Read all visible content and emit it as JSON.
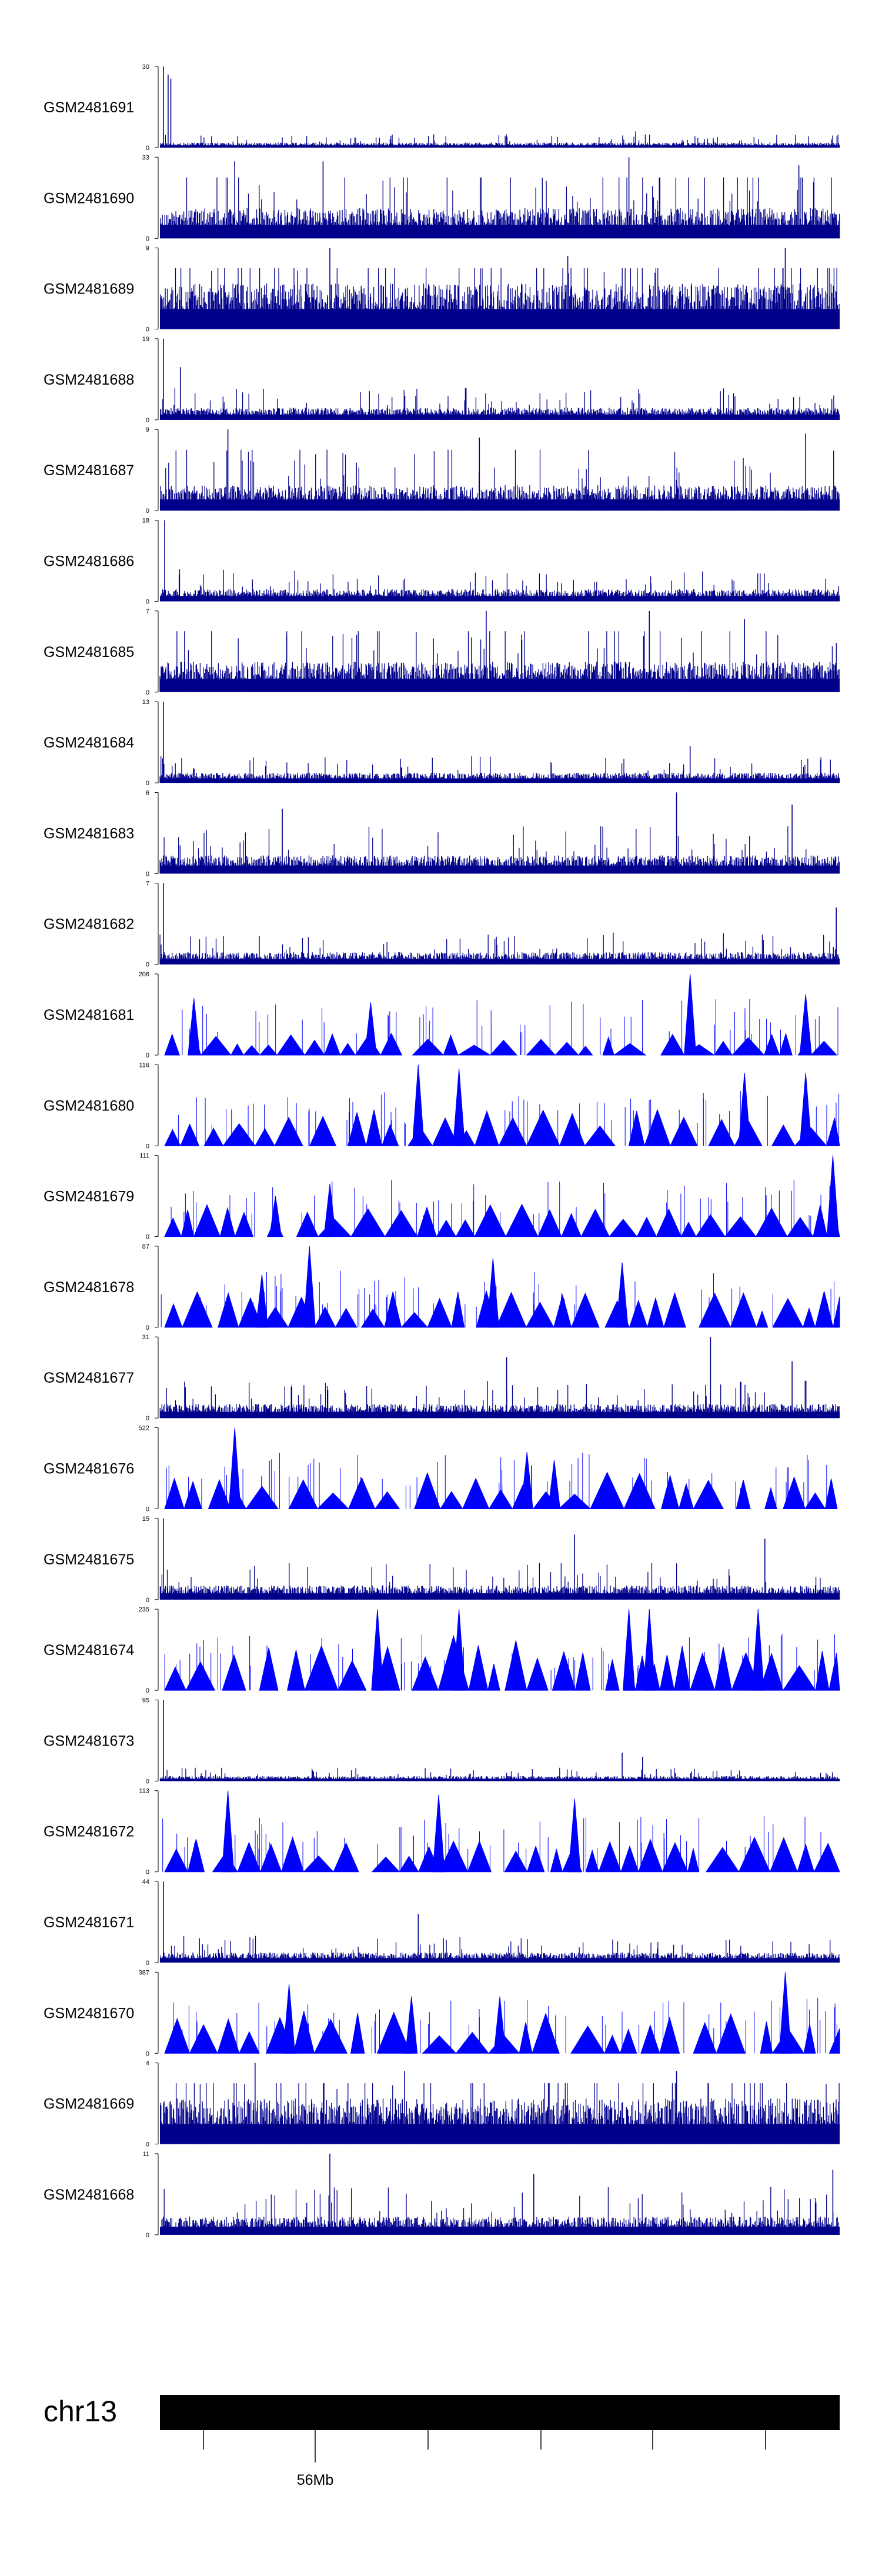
{
  "chart_data": {
    "type": "area",
    "title": "",
    "chromosome": "chr13",
    "position_tick_labels": [
      "56Mb"
    ],
    "colors": {
      "signal_dense": "#00008b",
      "signal_sparse": "#0000ff",
      "ideogram": "#000000",
      "axis": "#000000"
    },
    "series": [
      {
        "name": "GSM2481691",
        "ylim": [
          0,
          30
        ],
        "ymax_label": "30",
        "ymin_label": "0",
        "style": "dense",
        "base_fraction": 0.05,
        "peaks": [
          {
            "x": 0.005,
            "y": 1.0
          },
          {
            "x": 0.012,
            "y": 0.9
          },
          {
            "x": 0.016,
            "y": 0.85
          },
          {
            "x": 0.7,
            "y": 0.2
          }
        ]
      },
      {
        "name": "GSM2481690",
        "ylim": [
          0,
          33
        ],
        "ymax_label": "33",
        "ymin_label": "0",
        "style": "dense",
        "base_fraction": 0.3,
        "peaks": [
          {
            "x": 0.11,
            "y": 0.95
          },
          {
            "x": 0.24,
            "y": 0.95
          },
          {
            "x": 0.69,
            "y": 1.0
          },
          {
            "x": 0.94,
            "y": 0.9
          }
        ]
      },
      {
        "name": "GSM2481689",
        "ylim": [
          0,
          9
        ],
        "ymax_label": "9",
        "ymin_label": "0",
        "style": "dense",
        "base_fraction": 0.45,
        "peaks": [
          {
            "x": 0.25,
            "y": 1.0
          },
          {
            "x": 0.6,
            "y": 0.9
          },
          {
            "x": 0.92,
            "y": 1.0
          }
        ]
      },
      {
        "name": "GSM2481688",
        "ylim": [
          0,
          19
        ],
        "ymax_label": "19",
        "ymin_label": "0",
        "style": "dense",
        "base_fraction": 0.12,
        "peaks": [
          {
            "x": 0.005,
            "y": 1.0
          },
          {
            "x": 0.03,
            "y": 0.65
          }
        ]
      },
      {
        "name": "GSM2481687",
        "ylim": [
          0,
          9
        ],
        "ymax_label": "9",
        "ymin_label": "0",
        "style": "dense",
        "base_fraction": 0.25,
        "peaks": [
          {
            "x": 0.1,
            "y": 1.0
          },
          {
            "x": 0.47,
            "y": 0.9
          },
          {
            "x": 0.95,
            "y": 0.95
          }
        ]
      },
      {
        "name": "GSM2481686",
        "ylim": [
          0,
          18
        ],
        "ymax_label": "18",
        "ymin_label": "0",
        "style": "dense",
        "base_fraction": 0.12,
        "peaks": [
          {
            "x": 0.007,
            "y": 1.0
          }
        ]
      },
      {
        "name": "GSM2481685",
        "ylim": [
          0,
          7
        ],
        "ymax_label": "7",
        "ymin_label": "0",
        "style": "dense",
        "base_fraction": 0.3,
        "peaks": [
          {
            "x": 0.48,
            "y": 1.0
          },
          {
            "x": 0.72,
            "y": 1.0
          },
          {
            "x": 0.86,
            "y": 0.9
          }
        ]
      },
      {
        "name": "GSM2481684",
        "ylim": [
          0,
          13
        ],
        "ymax_label": "13",
        "ymin_label": "0",
        "style": "dense",
        "base_fraction": 0.1,
        "peaks": [
          {
            "x": 0.005,
            "y": 1.0
          },
          {
            "x": 0.78,
            "y": 0.45
          }
        ]
      },
      {
        "name": "GSM2481683",
        "ylim": [
          0,
          6
        ],
        "ymax_label": "6",
        "ymin_label": "0",
        "style": "dense",
        "base_fraction": 0.18,
        "peaks": [
          {
            "x": 0.18,
            "y": 0.8
          },
          {
            "x": 0.76,
            "y": 1.0
          },
          {
            "x": 0.93,
            "y": 0.85
          }
        ]
      },
      {
        "name": "GSM2481682",
        "ylim": [
          0,
          7
        ],
        "ymax_label": "7",
        "ymin_label": "0",
        "style": "dense",
        "base_fraction": 0.12,
        "peaks": [
          {
            "x": 0.005,
            "y": 1.0
          },
          {
            "x": 0.995,
            "y": 0.7
          }
        ]
      },
      {
        "name": "GSM2481681",
        "ylim": [
          0,
          206
        ],
        "ymax_label": "206",
        "ymin_label": "0",
        "style": "sparse",
        "base_fraction": 0.18,
        "peaks": [
          {
            "x": 0.05,
            "y": 0.7
          },
          {
            "x": 0.31,
            "y": 0.65
          },
          {
            "x": 0.78,
            "y": 1.0
          },
          {
            "x": 0.95,
            "y": 0.75
          }
        ]
      },
      {
        "name": "GSM2481680",
        "ylim": [
          0,
          116
        ],
        "ymax_label": "116",
        "ymin_label": "0",
        "style": "sparse",
        "base_fraction": 0.3,
        "peaks": [
          {
            "x": 0.38,
            "y": 1.0
          },
          {
            "x": 0.44,
            "y": 0.95
          },
          {
            "x": 0.86,
            "y": 0.9
          },
          {
            "x": 0.95,
            "y": 0.9
          }
        ]
      },
      {
        "name": "GSM2481679",
        "ylim": [
          0,
          111
        ],
        "ymax_label": "111",
        "ymin_label": "0",
        "style": "sparse",
        "base_fraction": 0.28,
        "peaks": [
          {
            "x": 0.17,
            "y": 0.5
          },
          {
            "x": 0.25,
            "y": 0.65
          },
          {
            "x": 0.99,
            "y": 1.0
          }
        ]
      },
      {
        "name": "GSM2481678",
        "ylim": [
          0,
          87
        ],
        "ymax_label": "87",
        "ymin_label": "0",
        "style": "sparse",
        "base_fraction": 0.3,
        "peaks": [
          {
            "x": 0.15,
            "y": 0.65
          },
          {
            "x": 0.22,
            "y": 1.0
          },
          {
            "x": 0.49,
            "y": 0.85
          },
          {
            "x": 0.68,
            "y": 0.8
          }
        ]
      },
      {
        "name": "GSM2481677",
        "ylim": [
          0,
          31
        ],
        "ymax_label": "31",
        "ymin_label": "0",
        "style": "dense",
        "base_fraction": 0.14,
        "peaks": [
          {
            "x": 0.51,
            "y": 0.75
          },
          {
            "x": 0.81,
            "y": 1.0
          },
          {
            "x": 0.93,
            "y": 0.7
          }
        ]
      },
      {
        "name": "GSM2481676",
        "ylim": [
          0,
          522
        ],
        "ymax_label": "522",
        "ymin_label": "0",
        "style": "sparse",
        "base_fraction": 0.3,
        "peaks": [
          {
            "x": 0.11,
            "y": 1.0
          },
          {
            "x": 0.54,
            "y": 0.7
          },
          {
            "x": 0.58,
            "y": 0.6
          }
        ]
      },
      {
        "name": "GSM2481675",
        "ylim": [
          0,
          15
        ],
        "ymax_label": "15",
        "ymin_label": "0",
        "style": "dense",
        "base_fraction": 0.14,
        "peaks": [
          {
            "x": 0.005,
            "y": 1.0
          },
          {
            "x": 0.61,
            "y": 0.8
          },
          {
            "x": 0.89,
            "y": 0.75
          }
        ]
      },
      {
        "name": "GSM2481674",
        "ylim": [
          0,
          235
        ],
        "ymax_label": "235",
        "ymin_label": "0",
        "style": "sparse",
        "base_fraction": 0.45,
        "peaks": [
          {
            "x": 0.32,
            "y": 1.0
          },
          {
            "x": 0.44,
            "y": 1.0
          },
          {
            "x": 0.69,
            "y": 1.0
          },
          {
            "x": 0.72,
            "y": 1.0
          },
          {
            "x": 0.88,
            "y": 1.0
          }
        ]
      },
      {
        "name": "GSM2481673",
        "ylim": [
          0,
          95
        ],
        "ymax_label": "95",
        "ymin_label": "0",
        "style": "dense",
        "base_fraction": 0.05,
        "peaks": [
          {
            "x": 0.005,
            "y": 1.0
          },
          {
            "x": 0.68,
            "y": 0.35
          },
          {
            "x": 0.71,
            "y": 0.3
          }
        ]
      },
      {
        "name": "GSM2481672",
        "ylim": [
          0,
          113
        ],
        "ymax_label": "113",
        "ymin_label": "0",
        "style": "sparse",
        "base_fraction": 0.3,
        "peaks": [
          {
            "x": 0.1,
            "y": 1.0
          },
          {
            "x": 0.41,
            "y": 0.95
          },
          {
            "x": 0.61,
            "y": 0.9
          }
        ]
      },
      {
        "name": "GSM2481671",
        "ylim": [
          0,
          44
        ],
        "ymax_label": "44",
        "ymin_label": "0",
        "style": "dense",
        "base_fraction": 0.1,
        "peaks": [
          {
            "x": 0.005,
            "y": 1.0
          },
          {
            "x": 0.38,
            "y": 0.6
          }
        ]
      },
      {
        "name": "GSM2481670",
        "ylim": [
          0,
          387
        ],
        "ymax_label": "387",
        "ymin_label": "0",
        "style": "sparse",
        "base_fraction": 0.35,
        "peaks": [
          {
            "x": 0.19,
            "y": 0.85
          },
          {
            "x": 0.37,
            "y": 0.7
          },
          {
            "x": 0.5,
            "y": 0.7
          },
          {
            "x": 0.92,
            "y": 1.0
          }
        ]
      },
      {
        "name": "GSM2481669",
        "ylim": [
          0,
          4
        ],
        "ymax_label": "4",
        "ymin_label": "0",
        "style": "dense",
        "base_fraction": 0.45,
        "peaks": [
          {
            "x": 0.14,
            "y": 1.0
          },
          {
            "x": 0.36,
            "y": 0.9
          },
          {
            "x": 0.76,
            "y": 0.9
          }
        ]
      },
      {
        "name": "GSM2481668",
        "ylim": [
          0,
          11
        ],
        "ymax_label": "11",
        "ymin_label": "0",
        "style": "dense",
        "base_fraction": 0.18,
        "peaks": [
          {
            "x": 0.25,
            "y": 1.0
          },
          {
            "x": 0.55,
            "y": 0.75
          },
          {
            "x": 0.99,
            "y": 0.8
          }
        ]
      }
    ]
  }
}
